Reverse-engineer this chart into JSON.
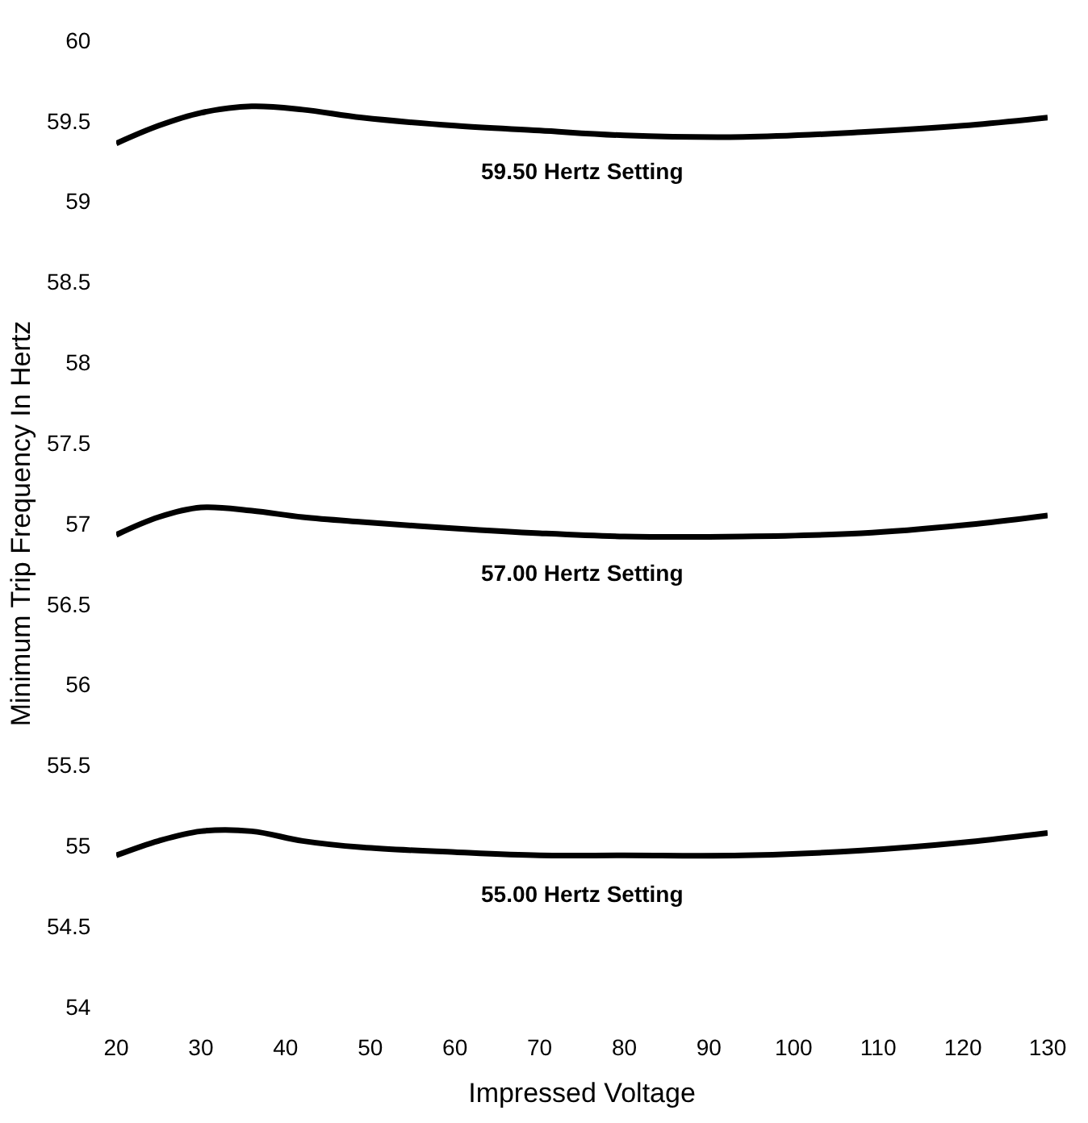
{
  "chart_data": {
    "type": "line",
    "xlabel": "Impressed Voltage",
    "ylabel": "Minimum Trip Frequency In Hertz",
    "x": [
      20,
      25,
      30,
      36,
      42,
      49,
      60,
      70,
      80,
      94,
      108,
      120,
      130
    ],
    "series": [
      {
        "name": "59.50 Hertz Setting",
        "color": "#000000",
        "values": [
          59.36,
          59.47,
          59.55,
          59.59,
          59.57,
          59.52,
          59.47,
          59.44,
          59.41,
          59.4,
          59.43,
          59.47,
          59.52
        ]
      },
      {
        "name": "57.00 Hertz Setting",
        "color": "#000000",
        "values": [
          56.93,
          57.04,
          57.1,
          57.08,
          57.04,
          57.01,
          56.97,
          56.94,
          56.92,
          56.92,
          56.94,
          56.99,
          57.05
        ]
      },
      {
        "name": "55.00 Hertz Setting",
        "color": "#000000",
        "values": [
          54.94,
          55.03,
          55.09,
          55.09,
          55.03,
          54.99,
          54.96,
          54.94,
          54.94,
          54.94,
          54.97,
          55.02,
          55.08
        ]
      }
    ],
    "xlim": [
      20,
      130
    ],
    "ylim": [
      54,
      60
    ],
    "xticks": [
      20,
      30,
      40,
      50,
      60,
      70,
      80,
      90,
      100,
      110,
      120,
      130
    ],
    "yticks": [
      54,
      54.5,
      55,
      55.5,
      56,
      56.5,
      57,
      57.5,
      58,
      58.5,
      59,
      59.5,
      60
    ],
    "legend": false,
    "marker": "none",
    "line_style": "solid"
  }
}
